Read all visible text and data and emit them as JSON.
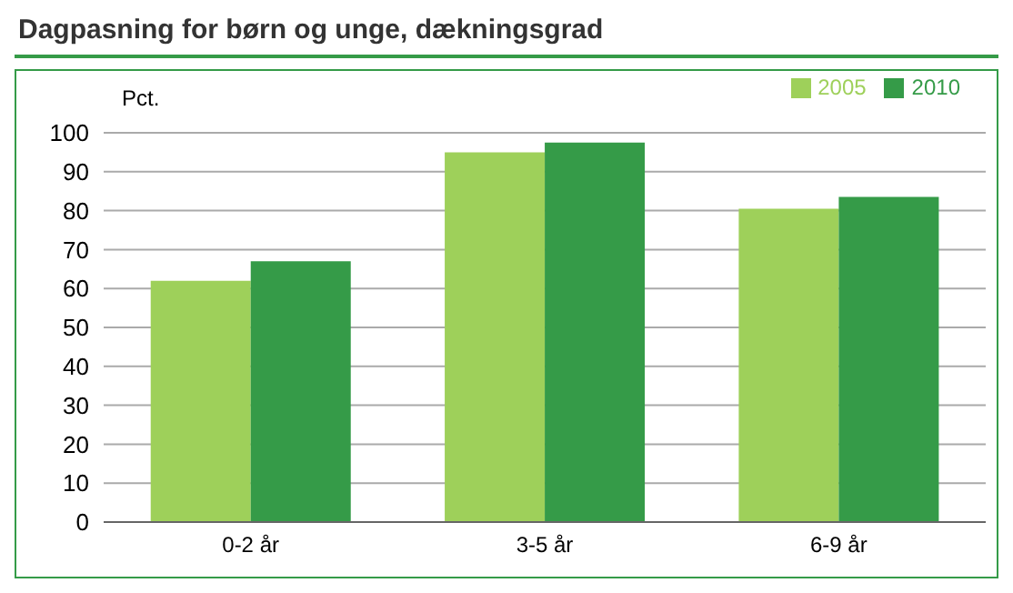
{
  "chart_data": {
    "type": "bar",
    "title": "Dagpasning for børn og unge, dækningsgrad",
    "ylabel": "Pct.",
    "categories": [
      "0-2 år",
      "3-5 år",
      "6-9 år"
    ],
    "series": [
      {
        "name": "2005",
        "color": "#9ed05a",
        "values": [
          62,
          95,
          80.5
        ]
      },
      {
        "name": "2010",
        "color": "#359b48",
        "values": [
          67,
          97.5,
          83.5
        ]
      }
    ],
    "ylim": [
      0,
      100
    ],
    "yticks": [
      0,
      10,
      20,
      30,
      40,
      50,
      60,
      70,
      80,
      90,
      100
    ],
    "grid": "y",
    "legend": "top right"
  }
}
